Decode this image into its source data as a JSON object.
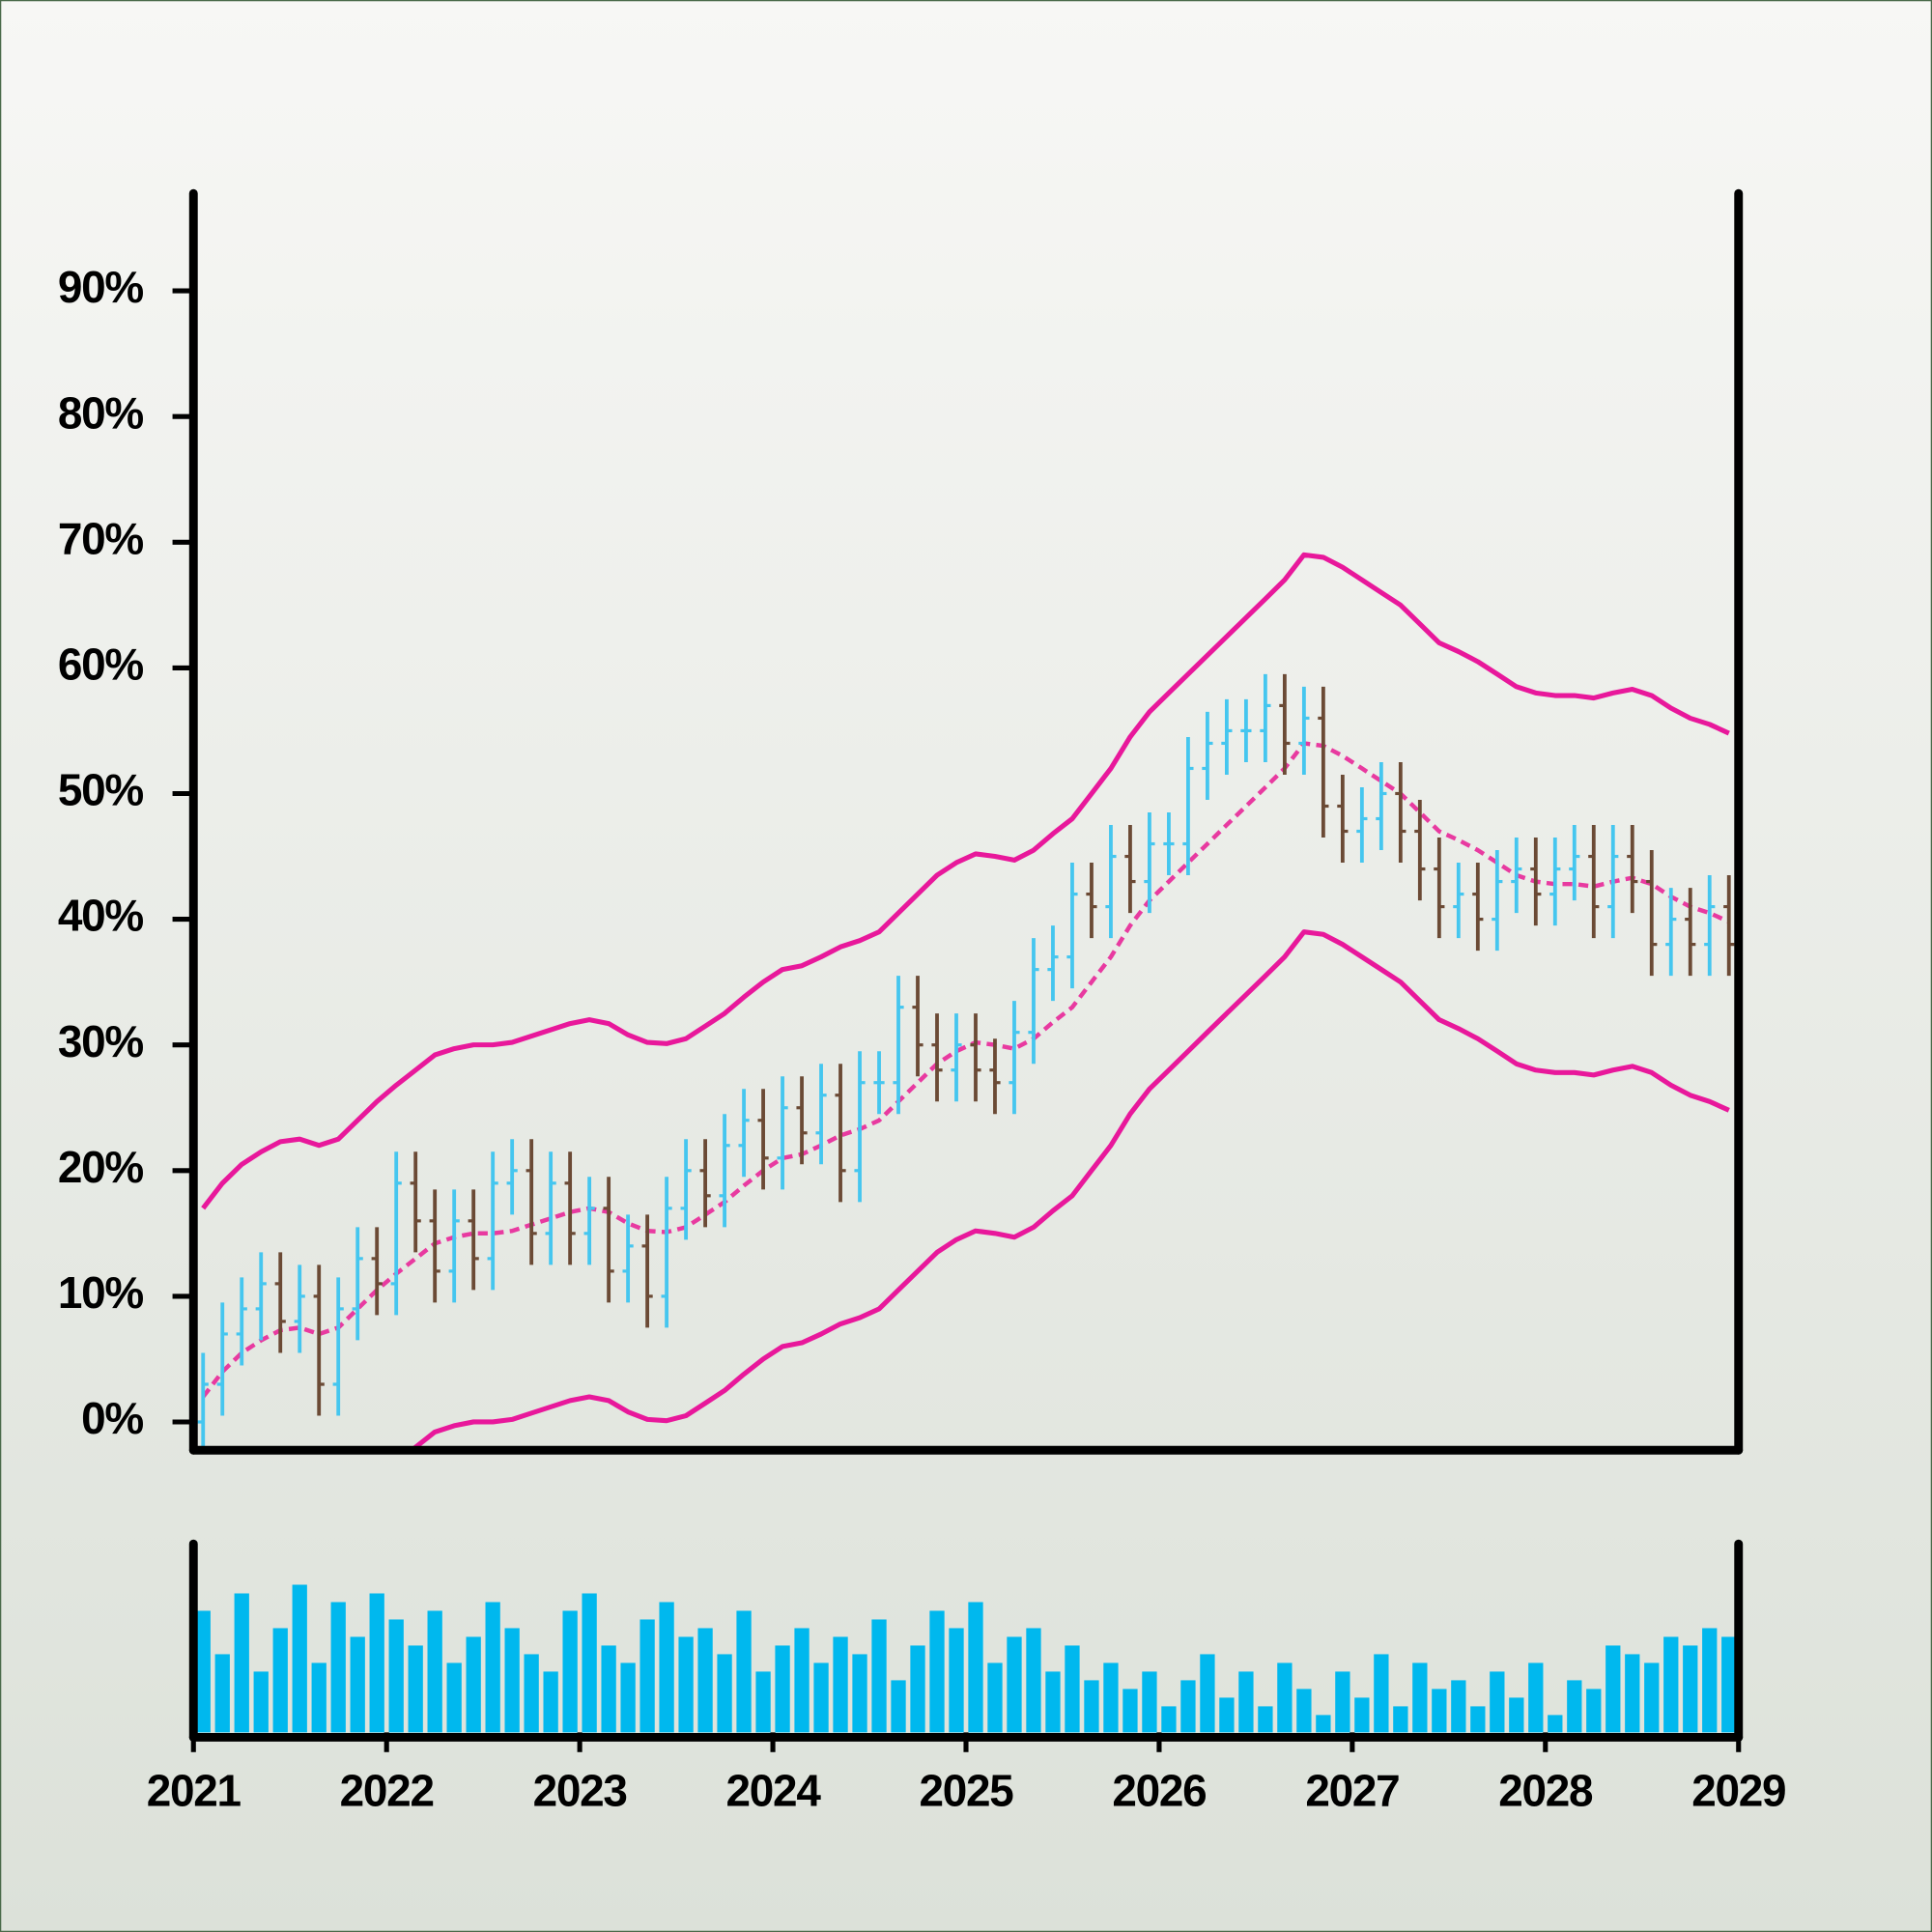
{
  "chart_data": {
    "type": "ohlc",
    "xlim": [
      2021,
      2029
    ],
    "xticks": [
      2021,
      2022,
      2023,
      2024,
      2025,
      2026,
      2027,
      2028,
      2029
    ],
    "ylim": [
      -2.25,
      97.75
    ],
    "yticks": [
      {
        "value": 0,
        "label": "0%"
      },
      {
        "value": 10,
        "label": "10%"
      },
      {
        "value": 20,
        "label": "20%"
      },
      {
        "value": 30,
        "label": "30%"
      },
      {
        "value": 40,
        "label": "40%"
      },
      {
        "value": 50,
        "label": "50%"
      },
      {
        "value": 60,
        "label": "60%"
      },
      {
        "value": 70,
        "label": "70%"
      },
      {
        "value": 80,
        "label": "80%"
      },
      {
        "value": 90,
        "label": "90%"
      }
    ],
    "volume_lim": [
      0,
      100
    ],
    "up_color": "#45c6ef",
    "down_color": "#6b4a35",
    "band_color": "#e8189b",
    "middle_color": "#e83aa0",
    "volume_color": "#00b8ee",
    "x": [
      2021.05,
      2021.15,
      2021.25,
      2021.35,
      2021.45,
      2021.55,
      2021.65,
      2021.75,
      2021.85,
      2021.95,
      2022.05,
      2022.15,
      2022.25,
      2022.35,
      2022.45,
      2022.55,
      2022.65,
      2022.75,
      2022.85,
      2022.95,
      2023.05,
      2023.15,
      2023.25,
      2023.35,
      2023.45,
      2023.55,
      2023.65,
      2023.75,
      2023.85,
      2023.95,
      2024.05,
      2024.15,
      2024.25,
      2024.35,
      2024.45,
      2024.55,
      2024.65,
      2024.75,
      2024.85,
      2024.95,
      2025.05,
      2025.15,
      2025.25,
      2025.35,
      2025.45,
      2025.55,
      2025.65,
      2025.75,
      2025.85,
      2025.95,
      2026.05,
      2026.15,
      2026.25,
      2026.35,
      2026.45,
      2026.55,
      2026.65,
      2026.75,
      2026.85,
      2026.95,
      2027.05,
      2027.15,
      2027.25,
      2027.35,
      2027.45,
      2027.55,
      2027.65,
      2027.75,
      2027.85,
      2027.95,
      2028.05,
      2028.15,
      2028.25,
      2028.35,
      2028.45,
      2028.55,
      2028.65,
      2028.75,
      2028.85,
      2028.95
    ],
    "open": [
      0,
      3,
      7,
      9,
      11,
      8,
      10,
      3,
      9,
      13,
      11,
      19,
      16,
      12,
      16,
      13,
      19,
      20,
      15,
      19,
      15,
      17,
      12,
      14,
      10,
      17,
      20,
      18,
      22,
      24,
      21,
      25,
      23,
      26,
      20,
      27,
      27,
      33,
      30,
      28,
      30,
      28,
      27,
      31,
      36,
      37,
      42,
      41,
      45,
      43,
      46,
      46,
      52,
      54,
      55,
      55,
      57,
      54,
      56,
      49,
      47,
      48,
      50,
      47,
      44,
      41,
      42,
      40,
      43,
      44,
      42,
      44,
      45,
      41,
      45,
      43,
      38,
      40,
      38,
      41
    ],
    "high": [
      5.5,
      9.5,
      11.5,
      13.5,
      13.5,
      12.5,
      12.5,
      11.5,
      15.5,
      15.5,
      21.5,
      21.5,
      18.5,
      18.5,
      18.5,
      21.5,
      22.5,
      22.5,
      21.5,
      21.5,
      19.5,
      19.5,
      16.5,
      16.5,
      19.5,
      22.5,
      22.5,
      24.5,
      26.5,
      26.5,
      27.5,
      27.5,
      28.5,
      28.5,
      29.5,
      29.5,
      35.5,
      35.5,
      32.5,
      32.5,
      32.5,
      30.5,
      33.5,
      38.5,
      39.5,
      44.5,
      44.5,
      47.5,
      47.5,
      48.5,
      48.5,
      54.5,
      56.5,
      57.5,
      57.5,
      59.5,
      59.5,
      58.5,
      58.5,
      51.5,
      50.5,
      52.5,
      52.5,
      49.5,
      46.5,
      44.5,
      44.5,
      45.5,
      46.5,
      46.5,
      46.5,
      47.5,
      47.5,
      47.5,
      47.5,
      45.5,
      42.5,
      42.5,
      43.5,
      43.5
    ],
    "low": [
      -2.5,
      0.5,
      4.5,
      6.5,
      5.5,
      5.5,
      0.5,
      0.5,
      6.5,
      8.5,
      8.5,
      13.5,
      9.5,
      9.5,
      10.5,
      10.5,
      16.5,
      12.5,
      12.5,
      12.5,
      12.5,
      9.5,
      9.5,
      7.5,
      7.5,
      14.5,
      15.5,
      15.5,
      19.5,
      18.5,
      18.5,
      20.5,
      20.5,
      17.5,
      17.5,
      24.5,
      24.5,
      27.5,
      25.5,
      25.5,
      25.5,
      24.5,
      24.5,
      28.5,
      33.5,
      34.5,
      38.5,
      38.5,
      40.5,
      40.5,
      43.5,
      43.5,
      49.5,
      51.5,
      52.5,
      52.5,
      51.5,
      51.5,
      46.5,
      44.5,
      44.5,
      45.5,
      44.5,
      41.5,
      38.5,
      38.5,
      37.5,
      37.5,
      40.5,
      39.5,
      39.5,
      41.5,
      38.5,
      38.5,
      40.5,
      35.5,
      35.5,
      35.5,
      35.5,
      35.5
    ],
    "close": [
      3,
      7,
      9,
      11,
      8,
      10,
      3,
      9,
      13,
      11,
      19,
      16,
      12,
      16,
      13,
      19,
      20,
      15,
      19,
      15,
      17,
      12,
      14,
      10,
      17,
      20,
      18,
      22,
      24,
      21,
      25,
      23,
      26,
      20,
      27,
      27,
      33,
      30,
      28,
      30,
      28,
      27,
      31,
      36,
      37,
      42,
      41,
      45,
      43,
      46,
      46,
      52,
      54,
      55,
      55,
      57,
      54,
      56,
      49,
      47,
      48,
      50,
      47,
      44,
      41,
      42,
      40,
      43,
      44,
      42,
      44,
      45,
      41,
      45,
      43,
      38,
      40,
      38,
      41,
      38
    ],
    "volume": [
      70,
      45,
      80,
      35,
      60,
      85,
      40,
      75,
      55,
      80,
      65,
      50,
      70,
      40,
      55,
      75,
      60,
      45,
      35,
      70,
      80,
      50,
      40,
      65,
      75,
      55,
      60,
      45,
      70,
      35,
      50,
      60,
      40,
      55,
      45,
      65,
      30,
      50,
      70,
      60,
      75,
      40,
      55,
      60,
      35,
      50,
      30,
      40,
      25,
      35,
      15,
      30,
      45,
      20,
      35,
      15,
      40,
      25,
      10,
      35,
      20,
      45,
      15,
      40,
      25,
      30,
      15,
      35,
      20,
      40,
      10,
      30,
      25,
      50,
      45,
      40,
      55,
      50,
      60,
      55
    ],
    "upper": [
      17,
      19,
      20.5,
      21.5,
      22.3,
      22.5,
      22,
      22.5,
      24,
      25.5,
      26.8,
      28,
      29.2,
      29.7,
      30,
      30,
      30.2,
      30.7,
      31.2,
      31.7,
      32,
      31.7,
      30.8,
      30.2,
      30.1,
      30.5,
      31.5,
      32.5,
      33.8,
      35,
      36,
      36.3,
      37,
      37.8,
      38.3,
      39,
      40.5,
      42,
      43.5,
      44.5,
      45.2,
      45,
      44.7,
      45.5,
      46.8,
      48,
      50,
      52,
      54.5,
      56.5,
      58,
      59.5,
      61,
      62.5,
      64,
      65.5,
      67,
      69,
      68.8,
      68,
      67,
      66,
      65,
      63.5,
      62,
      61.3,
      60.5,
      59.5,
      58.5,
      58,
      57.8,
      57.8,
      57.6,
      58,
      58.3,
      57.8,
      56.8,
      56,
      55.5,
      54.8
    ],
    "middle": [
      2,
      4,
      5.5,
      6.5,
      7.3,
      7.5,
      7,
      7.5,
      9,
      10.5,
      11.8,
      13,
      14.2,
      14.7,
      15,
      15,
      15.2,
      15.7,
      16.2,
      16.7,
      17,
      16.7,
      15.8,
      15.2,
      15.1,
      15.5,
      16.5,
      17.5,
      18.8,
      20,
      21,
      21.3,
      22,
      22.8,
      23.3,
      24,
      25.5,
      27,
      28.5,
      29.5,
      30.2,
      30,
      29.7,
      30.5,
      31.8,
      33,
      35,
      37,
      39.5,
      41.5,
      43,
      44.5,
      46,
      47.5,
      49,
      50.5,
      52,
      54,
      53.8,
      53,
      52,
      51,
      50,
      48.5,
      47,
      46.3,
      45.5,
      44.5,
      43.5,
      43,
      42.8,
      42.8,
      42.6,
      43,
      43.3,
      42.8,
      41.8,
      41,
      40.5,
      39.8
    ],
    "lower": [
      -13,
      -11,
      -9.5,
      -8.5,
      -7.7,
      -7.5,
      -8,
      -7.5,
      -6,
      -4.5,
      -3.2,
      -2,
      -0.8,
      -0.3,
      0,
      0,
      0.2,
      0.7,
      1.2,
      1.7,
      2,
      1.7,
      0.8,
      0.2,
      0.1,
      0.5,
      1.5,
      2.5,
      3.8,
      5,
      6,
      6.3,
      7,
      7.8,
      8.3,
      9,
      10.5,
      12,
      13.5,
      14.5,
      15.2,
      15,
      14.7,
      15.5,
      16.8,
      18,
      20,
      22,
      24.5,
      26.5,
      28,
      29.5,
      31,
      32.5,
      34,
      35.5,
      37,
      39,
      38.8,
      38,
      37,
      36,
      35,
      33.5,
      32,
      31.3,
      30.5,
      29.5,
      28.5,
      28,
      27.8,
      27.8,
      27.6,
      28,
      28.3,
      27.8,
      26.8,
      26,
      25.5,
      24.8
    ]
  }
}
